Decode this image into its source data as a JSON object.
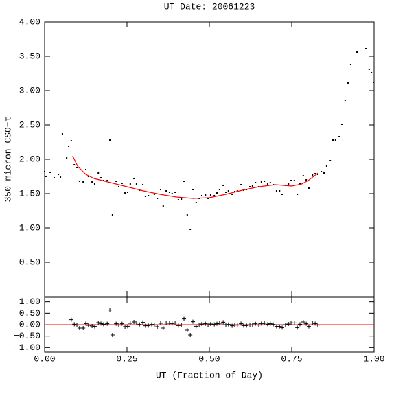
{
  "chart_data": [
    {
      "type": "scatter",
      "title": "UT Date: 20061223",
      "ylabel": "350 micron CSO−τ",
      "xlim": [
        0,
        1
      ],
      "ylim": [
        0,
        4
      ],
      "yticks": [
        {
          "value": 0.5,
          "label": "0.50"
        },
        {
          "value": 1,
          "label": "1.00"
        },
        {
          "value": 1.5,
          "label": "1.50"
        },
        {
          "value": 2,
          "label": "2.00"
        },
        {
          "value": 2.5,
          "label": "2.50"
        },
        {
          "value": 3,
          "label": "3.00"
        },
        {
          "value": 3.5,
          "label": "3.50"
        },
        {
          "value": 4,
          "label": "4.00"
        }
      ],
      "series": [
        {
          "mode": "dot",
          "color": "#000000",
          "x": [
            0.0,
            0.004,
            0.017,
            0.029,
            0.042,
            0.048,
            0.054,
            0.067,
            0.073,
            0.081,
            0.09,
            0.098,
            0.106,
            0.117,
            0.125,
            0.133,
            0.144,
            0.152,
            0.163,
            0.171,
            0.179,
            0.19,
            0.198,
            0.206,
            0.217,
            0.225,
            0.235,
            0.244,
            0.252,
            0.26,
            0.271,
            0.279,
            0.288,
            0.298,
            0.306,
            0.315,
            0.325,
            0.333,
            0.342,
            0.352,
            0.36,
            0.369,
            0.379,
            0.387,
            0.396,
            0.406,
            0.415,
            0.423,
            0.433,
            0.442,
            0.45,
            0.46,
            0.469,
            0.477,
            0.488,
            0.496,
            0.504,
            0.515,
            0.523,
            0.531,
            0.542,
            0.55,
            0.558,
            0.569,
            0.577,
            0.585,
            0.596,
            0.604,
            0.613,
            0.623,
            0.631,
            0.64,
            0.65,
            0.658,
            0.667,
            0.677,
            0.685,
            0.694,
            0.704,
            0.713,
            0.721,
            0.731,
            0.74,
            0.748,
            0.758,
            0.767,
            0.775,
            0.785,
            0.794,
            0.802,
            0.813,
            0.821,
            0.829,
            0.84,
            0.848,
            0.856,
            0.867,
            0.875,
            0.883,
            0.894,
            0.902,
            0.912,
            0.921,
            0.929,
            0.948,
            0.975,
            0.985,
            0.992,
            0.998
          ],
          "values": [
            1.82,
            1.75,
            1.81,
            1.73,
            1.78,
            1.74,
            2.37,
            2.02,
            2.19,
            2.27,
            1.92,
            1.88,
            1.68,
            1.67,
            1.85,
            1.75,
            1.67,
            1.64,
            1.8,
            1.73,
            1.69,
            1.69,
            2.28,
            1.19,
            1.68,
            1.6,
            1.65,
            1.51,
            1.52,
            1.64,
            1.72,
            1.64,
            1.55,
            1.63,
            1.46,
            1.47,
            1.52,
            1.49,
            1.43,
            1.56,
            1.32,
            1.54,
            1.52,
            1.5,
            1.52,
            1.41,
            1.42,
            1.68,
            1.19,
            0.98,
            1.56,
            1.37,
            1.43,
            1.47,
            1.48,
            1.43,
            1.48,
            1.47,
            1.51,
            1.56,
            1.62,
            1.52,
            1.54,
            1.49,
            1.53,
            1.54,
            1.63,
            1.55,
            1.56,
            1.6,
            1.61,
            1.66,
            1.6,
            1.67,
            1.68,
            1.64,
            1.66,
            1.63,
            1.54,
            1.54,
            1.49,
            1.62,
            1.64,
            1.69,
            1.69,
            1.49,
            1.64,
            1.76,
            1.7,
            1.58,
            1.77,
            1.79,
            1.78,
            1.82,
            1.8,
            1.9,
            1.98,
            2.28,
            2.28,
            2.33,
            2.51,
            2.86,
            3.11,
            3.38,
            3.56,
            3.61,
            3.31,
            3.26,
            3.12
          ]
        },
        {
          "mode": "line",
          "color": "#ff0000",
          "x": [
            0.085,
            0.1,
            0.125,
            0.15,
            0.2,
            0.25,
            0.3,
            0.35,
            0.4,
            0.45,
            0.5,
            0.55,
            0.6,
            0.65,
            0.7,
            0.75,
            0.78,
            0.8,
            0.83
          ],
          "values": [
            2.05,
            1.9,
            1.78,
            1.72,
            1.66,
            1.6,
            1.54,
            1.49,
            1.45,
            1.43,
            1.44,
            1.49,
            1.55,
            1.6,
            1.63,
            1.61,
            1.64,
            1.69,
            1.8
          ]
        }
      ]
    },
    {
      "type": "scatter",
      "xlabel": "UT (Fraction of Day)",
      "xlim": [
        0,
        1
      ],
      "ylim": [
        -1.2,
        1.2
      ],
      "xticks": [
        {
          "value": 0,
          "label": "0.00"
        },
        {
          "value": 0.25,
          "label": "0.25"
        },
        {
          "value": 0.5,
          "label": "0.50"
        },
        {
          "value": 0.75,
          "label": "0.75"
        },
        {
          "value": 1,
          "label": "1.00"
        }
      ],
      "yticks": [
        {
          "value": -1,
          "label": "−1.00"
        },
        {
          "value": -0.5,
          "label": "−0.50"
        },
        {
          "value": 0,
          "label": "0.00"
        },
        {
          "value": 0.5,
          "label": "0.50"
        },
        {
          "value": 1,
          "label": "1.00"
        }
      ],
      "reference_line": 0,
      "reference_color": "#ff0000",
      "series": [
        {
          "mode": "plus",
          "color": "#000000",
          "x": [
            0.081,
            0.09,
            0.098,
            0.106,
            0.117,
            0.125,
            0.133,
            0.144,
            0.152,
            0.163,
            0.171,
            0.179,
            0.19,
            0.198,
            0.206,
            0.217,
            0.225,
            0.235,
            0.244,
            0.252,
            0.26,
            0.271,
            0.279,
            0.288,
            0.298,
            0.306,
            0.315,
            0.325,
            0.333,
            0.342,
            0.352,
            0.36,
            0.369,
            0.379,
            0.387,
            0.396,
            0.406,
            0.415,
            0.423,
            0.433,
            0.442,
            0.45,
            0.46,
            0.469,
            0.477,
            0.488,
            0.496,
            0.504,
            0.515,
            0.523,
            0.531,
            0.542,
            0.55,
            0.558,
            0.569,
            0.577,
            0.585,
            0.596,
            0.604,
            0.613,
            0.623,
            0.631,
            0.64,
            0.65,
            0.658,
            0.667,
            0.677,
            0.685,
            0.694,
            0.704,
            0.713,
            0.721,
            0.731,
            0.74,
            0.748,
            0.758,
            0.767,
            0.775,
            0.785,
            0.794,
            0.802,
            0.813,
            0.821,
            0.829
          ],
          "values": [
            0.22,
            0.02,
            -0.02,
            -0.15,
            -0.15,
            0.05,
            -0.03,
            -0.06,
            -0.08,
            0.09,
            0.05,
            0.02,
            0.04,
            0.64,
            -0.45,
            0.04,
            -0.02,
            0.04,
            -0.09,
            -0.07,
            0.06,
            0.12,
            0.07,
            0.01,
            0.1,
            -0.05,
            -0.04,
            0.01,
            -0.02,
            -0.09,
            0.06,
            -0.15,
            0.07,
            0.06,
            0.05,
            0.07,
            -0.04,
            -0.02,
            0.25,
            -0.24,
            -0.45,
            0.13,
            -0.07,
            -0.01,
            0.03,
            0.04,
            -0.01,
            0.03,
            0.01,
            0.04,
            0.06,
            0.11,
            0,
            0.01,
            -0.05,
            -0.02,
            -0.02,
            0.05,
            -0.04,
            -0.04,
            -0.01,
            -0.01,
            0.04,
            -0.02,
            0.05,
            0.06,
            0.02,
            0.04,
            0.01,
            -0.08,
            -0.08,
            -0.13,
            0,
            0.03,
            0.08,
            0.08,
            -0.13,
            0.02,
            0.12,
            0.04,
            -0.08,
            0.07,
            0.05,
            -0.02
          ]
        }
      ]
    }
  ]
}
